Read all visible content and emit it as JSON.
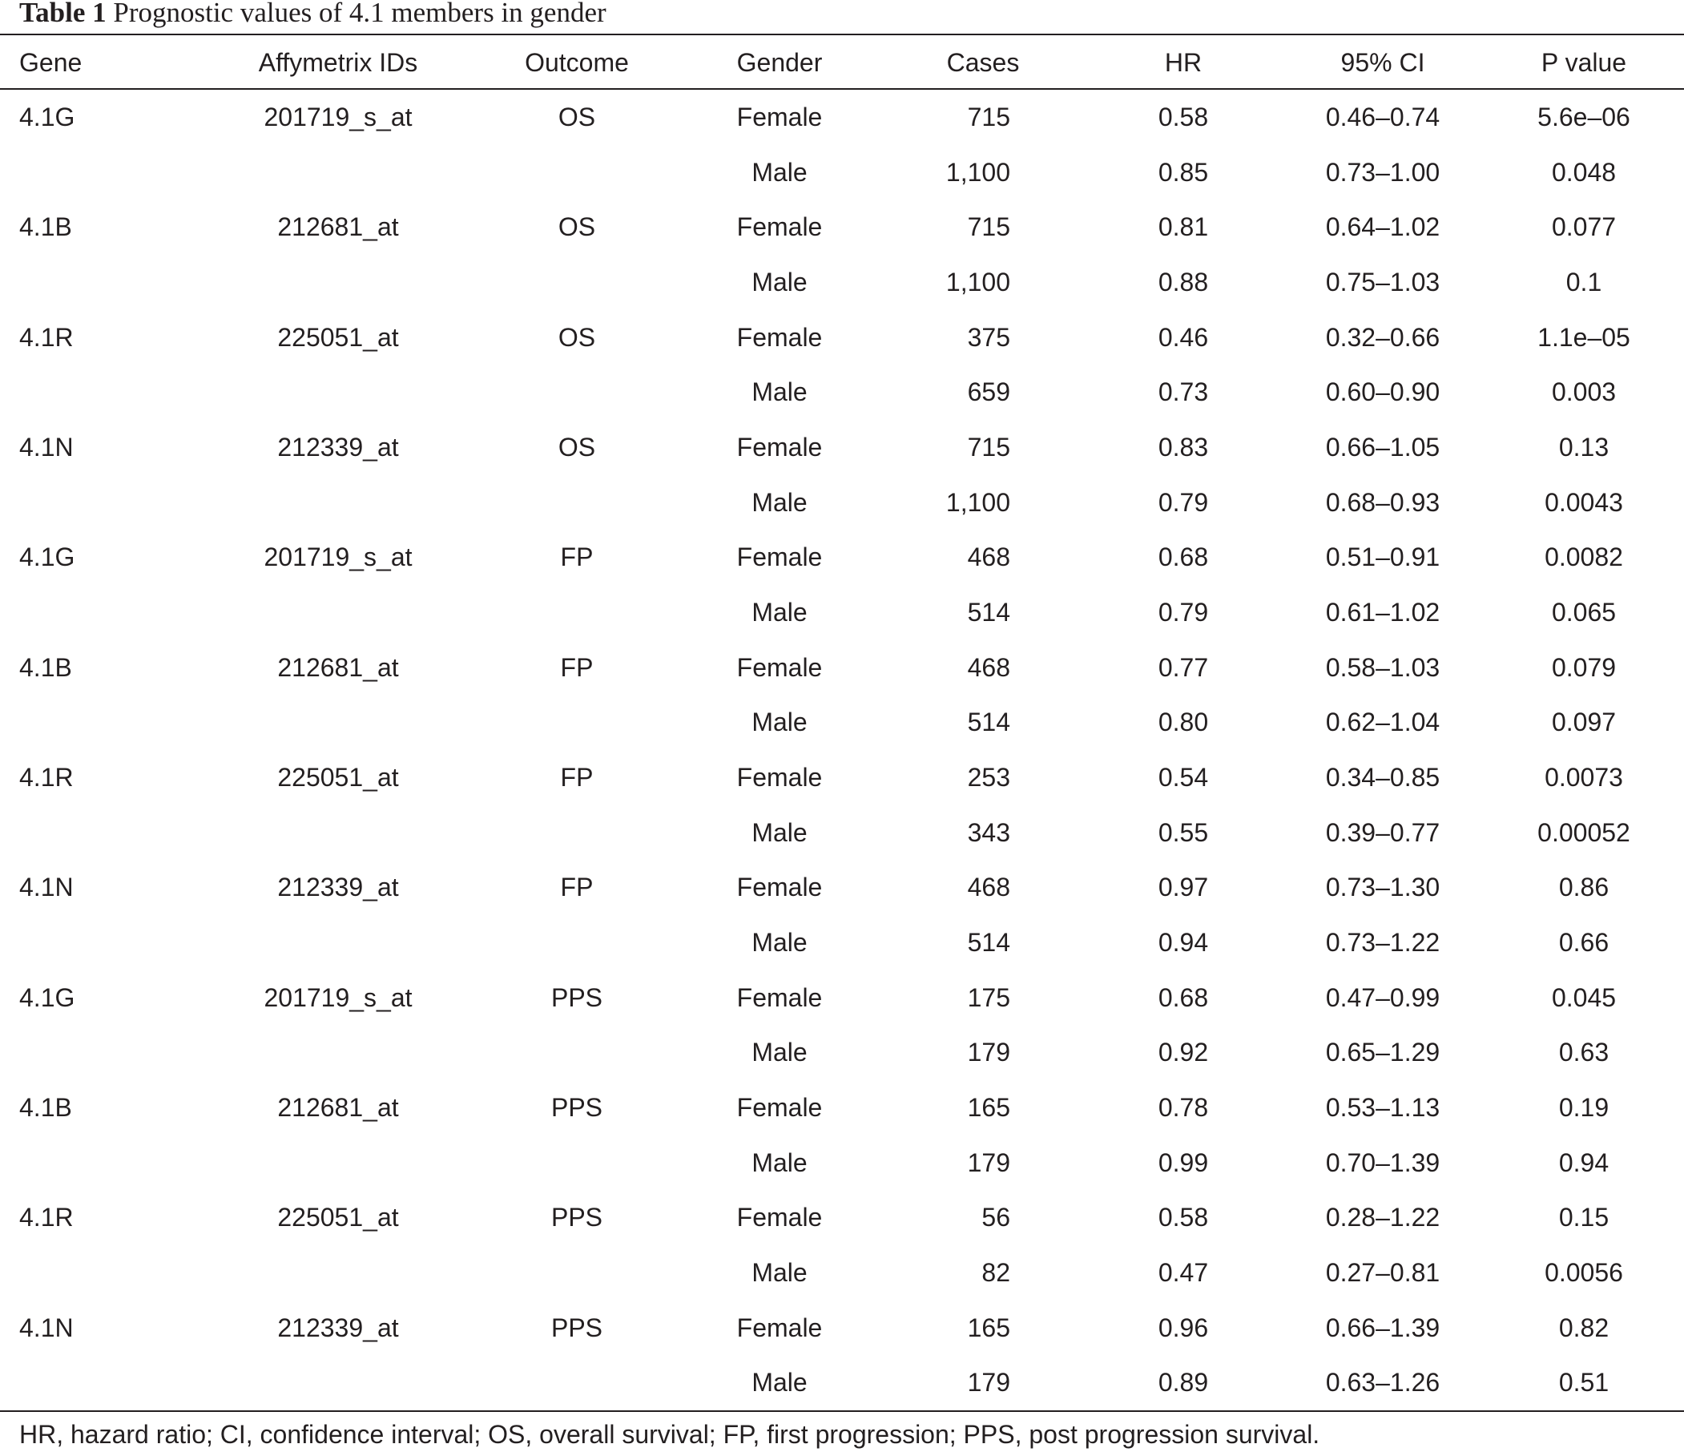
{
  "caption": {
    "label": "Table 1",
    "title": "Prognostic values of 4.1 members in gender"
  },
  "columns": {
    "gene": "Gene",
    "affy": "Affymetrix IDs",
    "outcome": "Outcome",
    "gender": "Gender",
    "cases": "Cases",
    "hr": "HR",
    "ci": "95% CI",
    "p": "P value"
  },
  "rows": [
    {
      "gene": "4.1G",
      "affy": "201719_s_at",
      "outcome": "OS",
      "gender": "Female",
      "cases": "715",
      "hr": "0.58",
      "ci": "0.46–0.74",
      "p": "5.6e–06"
    },
    {
      "gene": "",
      "affy": "",
      "outcome": "",
      "gender": "Male",
      "cases": "1,100",
      "hr": "0.85",
      "ci": "0.73–1.00",
      "p": "0.048"
    },
    {
      "gene": "4.1B",
      "affy": "212681_at",
      "outcome": "OS",
      "gender": "Female",
      "cases": "715",
      "hr": "0.81",
      "ci": "0.64–1.02",
      "p": "0.077"
    },
    {
      "gene": "",
      "affy": "",
      "outcome": "",
      "gender": "Male",
      "cases": "1,100",
      "hr": "0.88",
      "ci": "0.75–1.03",
      "p": "0.1"
    },
    {
      "gene": "4.1R",
      "affy": "225051_at",
      "outcome": "OS",
      "gender": "Female",
      "cases": "375",
      "hr": "0.46",
      "ci": "0.32–0.66",
      "p": "1.1e–05"
    },
    {
      "gene": "",
      "affy": "",
      "outcome": "",
      "gender": "Male",
      "cases": "659",
      "hr": "0.73",
      "ci": "0.60–0.90",
      "p": "0.003"
    },
    {
      "gene": "4.1N",
      "affy": "212339_at",
      "outcome": "OS",
      "gender": "Female",
      "cases": "715",
      "hr": "0.83",
      "ci": "0.66–1.05",
      "p": "0.13"
    },
    {
      "gene": "",
      "affy": "",
      "outcome": "",
      "gender": "Male",
      "cases": "1,100",
      "hr": "0.79",
      "ci": "0.68–0.93",
      "p": "0.0043"
    },
    {
      "gene": "4.1G",
      "affy": "201719_s_at",
      "outcome": "FP",
      "gender": "Female",
      "cases": "468",
      "hr": "0.68",
      "ci": "0.51–0.91",
      "p": "0.0082"
    },
    {
      "gene": "",
      "affy": "",
      "outcome": "",
      "gender": "Male",
      "cases": "514",
      "hr": "0.79",
      "ci": "0.61–1.02",
      "p": "0.065"
    },
    {
      "gene": "4.1B",
      "affy": "212681_at",
      "outcome": "FP",
      "gender": "Female",
      "cases": "468",
      "hr": "0.77",
      "ci": "0.58–1.03",
      "p": "0.079"
    },
    {
      "gene": "",
      "affy": "",
      "outcome": "",
      "gender": "Male",
      "cases": "514",
      "hr": "0.80",
      "ci": "0.62–1.04",
      "p": "0.097"
    },
    {
      "gene": "4.1R",
      "affy": "225051_at",
      "outcome": "FP",
      "gender": "Female",
      "cases": "253",
      "hr": "0.54",
      "ci": "0.34–0.85",
      "p": "0.0073"
    },
    {
      "gene": "",
      "affy": "",
      "outcome": "",
      "gender": "Male",
      "cases": "343",
      "hr": "0.55",
      "ci": "0.39–0.77",
      "p": "0.00052"
    },
    {
      "gene": "4.1N",
      "affy": "212339_at",
      "outcome": "FP",
      "gender": "Female",
      "cases": "468",
      "hr": "0.97",
      "ci": "0.73–1.30",
      "p": "0.86"
    },
    {
      "gene": "",
      "affy": "",
      "outcome": "",
      "gender": "Male",
      "cases": "514",
      "hr": "0.94",
      "ci": "0.73–1.22",
      "p": "0.66"
    },
    {
      "gene": "4.1G",
      "affy": "201719_s_at",
      "outcome": "PPS",
      "gender": "Female",
      "cases": "175",
      "hr": "0.68",
      "ci": "0.47–0.99",
      "p": "0.045"
    },
    {
      "gene": "",
      "affy": "",
      "outcome": "",
      "gender": "Male",
      "cases": "179",
      "hr": "0.92",
      "ci": "0.65–1.29",
      "p": "0.63"
    },
    {
      "gene": "4.1B",
      "affy": "212681_at",
      "outcome": "PPS",
      "gender": "Female",
      "cases": "165",
      "hr": "0.78",
      "ci": "0.53–1.13",
      "p": "0.19"
    },
    {
      "gene": "",
      "affy": "",
      "outcome": "",
      "gender": "Male",
      "cases": "179",
      "hr": "0.99",
      "ci": "0.70–1.39",
      "p": "0.94"
    },
    {
      "gene": "4.1R",
      "affy": "225051_at",
      "outcome": "PPS",
      "gender": "Female",
      "cases": "56",
      "hr": "0.58",
      "ci": "0.28–1.22",
      "p": "0.15"
    },
    {
      "gene": "",
      "affy": "",
      "outcome": "",
      "gender": "Male",
      "cases": "82",
      "hr": "0.47",
      "ci": "0.27–0.81",
      "p": "0.0056"
    },
    {
      "gene": "4.1N",
      "affy": "212339_at",
      "outcome": "PPS",
      "gender": "Female",
      "cases": "165",
      "hr": "0.96",
      "ci": "0.66–1.39",
      "p": "0.82"
    },
    {
      "gene": "",
      "affy": "",
      "outcome": "",
      "gender": "Male",
      "cases": "179",
      "hr": "0.89",
      "ci": "0.63–1.26",
      "p": "0.51"
    }
  ],
  "footnote": "HR, hazard ratio; CI, confidence interval; OS, overall survival; FP, first progression; PPS, post progression survival."
}
